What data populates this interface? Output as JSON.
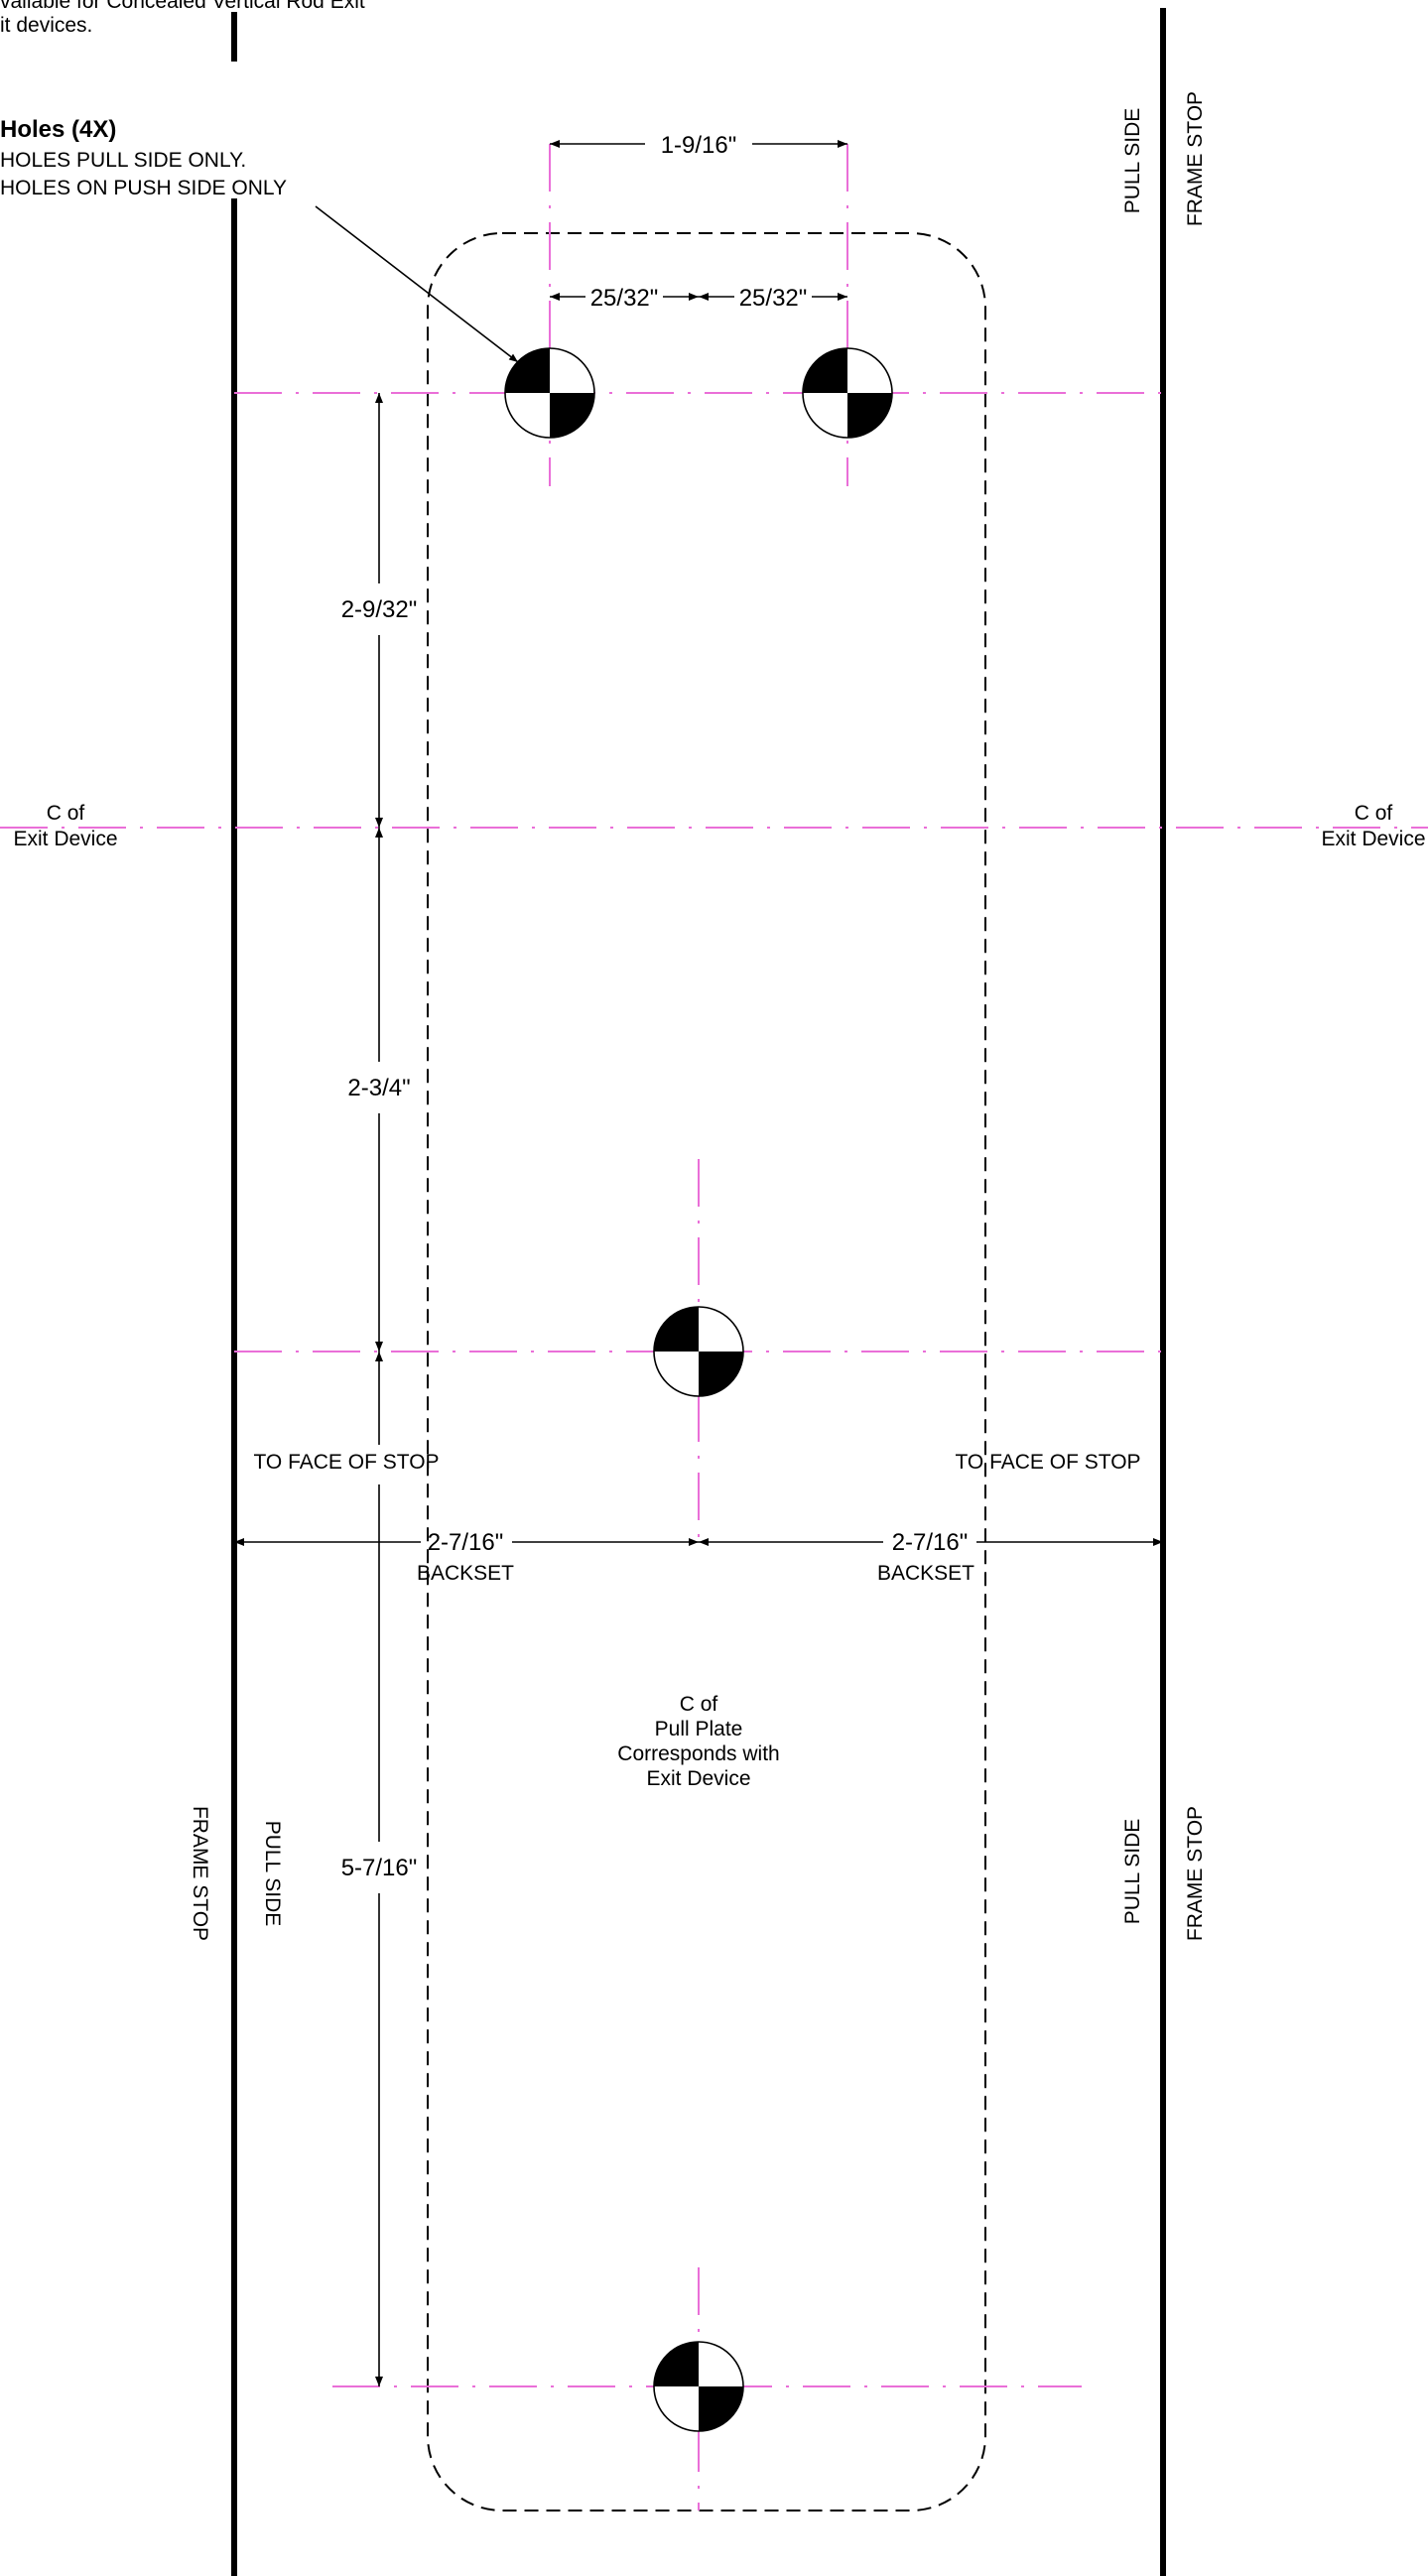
{
  "notes": {
    "top_line1": "vailable for Concealed Vertical Rod Exit",
    "top_line2": "it devices.",
    "holes_title": "Holes (4X)",
    "holes_line1": "HOLES PULL SIDE ONLY.",
    "holes_line2": "HOLES ON PUSH SIDE ONLY"
  },
  "dimensions": {
    "hole_spacing": "1-9/16\"",
    "half_left": "25/32\"",
    "half_right": "25/32\"",
    "upper_vertical": "2-9/32\"",
    "middle_vertical": "2-3/4\"",
    "lower_vertical": "5-7/16\"",
    "backset_left": "2-7/16\"",
    "backset_right": "2-7/16\""
  },
  "labels": {
    "pull_side": "PULL SIDE",
    "frame_stop": "FRAME STOP",
    "cl_of": "C of",
    "exit_device": "Exit Device",
    "to_face_of_stop": "TO FACE OF STOP",
    "backset": "BACKSET",
    "pull_plate_1": "C of",
    "pull_plate_2": "Pull Plate",
    "pull_plate_3": "Corresponds with",
    "pull_plate_4": "Exit Device"
  },
  "colors": {
    "centerline": "#ea6fd8",
    "lines": "#000000"
  }
}
